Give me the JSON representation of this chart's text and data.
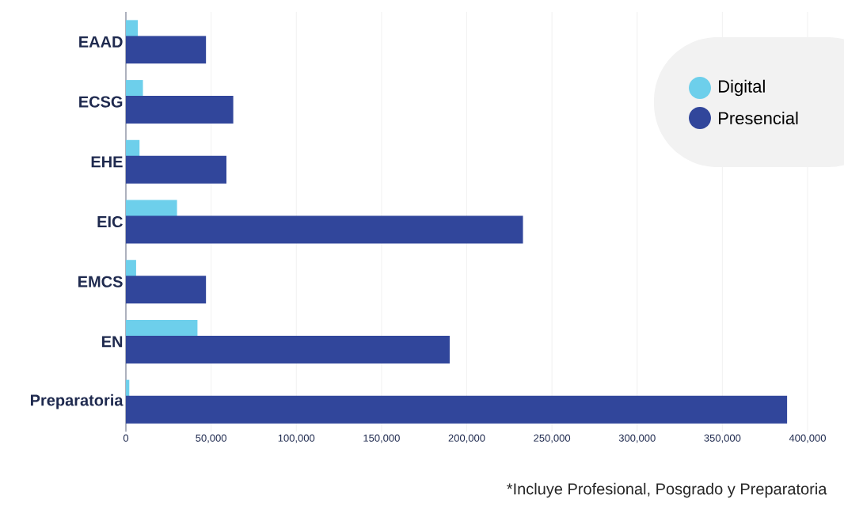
{
  "chart_data": {
    "type": "bar",
    "orientation": "horizontal",
    "categories": [
      "EAAD",
      "ECSG",
      "EHE",
      "EIC",
      "EMCS",
      "EN",
      "Preparatoria"
    ],
    "series": [
      {
        "name": "Digital",
        "color": "#6dcfeb",
        "values": [
          7000,
          10000,
          8000,
          30000,
          6000,
          42000,
          2000
        ]
      },
      {
        "name": "Presencial",
        "color": "#31469b",
        "values": [
          47000,
          63000,
          59000,
          233000,
          47000,
          190000,
          388000
        ]
      }
    ],
    "xlim": [
      0,
      400000
    ],
    "xticks": [
      0,
      {
        "value": 50000,
        "label": "50,000"
      },
      {
        "value": 100000,
        "label": "100,000"
      },
      {
        "value": 150000,
        "label": "150,000"
      },
      {
        "value": 200000,
        "label": "200,000"
      },
      {
        "value": 250000,
        "label": "250,000"
      },
      {
        "value": 300000,
        "label": "300,000"
      },
      {
        "value": 350000,
        "label": "350,000"
      },
      {
        "value": 400000,
        "label": "400,000"
      }
    ],
    "grid": "x",
    "legend": "top right",
    "annotations": [
      "*Incluye Profesional, Posgrado y Preparatoria"
    ]
  }
}
